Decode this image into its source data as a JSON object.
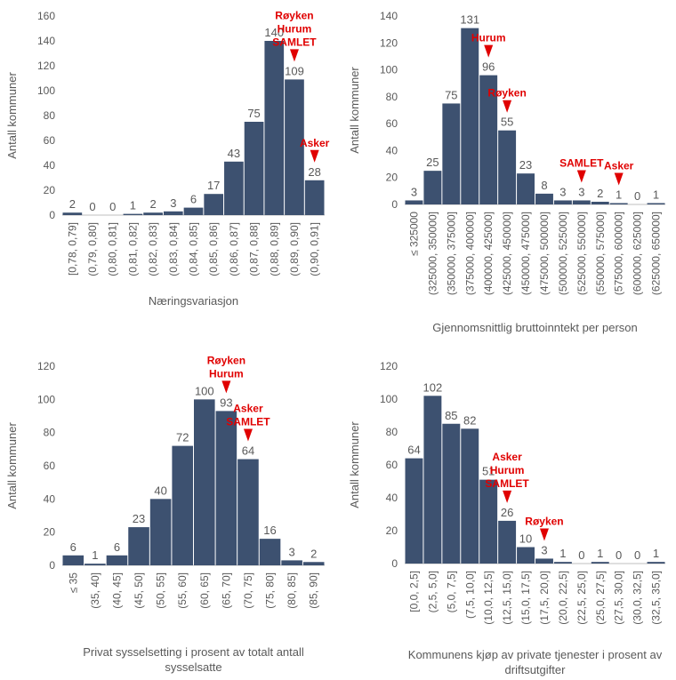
{
  "chart_data": [
    {
      "type": "bar",
      "y_label": "Antall kommuner",
      "x_label": "Næringsvariasjon",
      "color": "#3d5170",
      "categories": [
        "[0,78, 0,79]",
        "(0,79, 0,80]",
        "(0,80, 0,81]",
        "(0,81, 0,82]",
        "(0,82, 0,83]",
        "(0,83, 0,84]",
        "(0,84, 0,85]",
        "(0,85, 0,86]",
        "(0,86, 0,87]",
        "(0,87, 0,88]",
        "(0,88, 0,89]",
        "(0,89, 0,90]",
        "(0,90, 0,91]"
      ],
      "values": [
        2,
        0,
        0,
        1,
        2,
        3,
        6,
        17,
        43,
        75,
        140,
        109,
        28
      ],
      "ylim": [
        0,
        160
      ],
      "yticks": [
        0,
        20,
        40,
        60,
        80,
        100,
        120,
        140,
        160
      ],
      "annotations": [
        {
          "x": "(0,89, 0,90]",
          "text": [
            "Røyken",
            "Hurum",
            "SAMLET"
          ]
        },
        {
          "x": "(0,90, 0,91]",
          "text": [
            "Asker"
          ]
        }
      ]
    },
    {
      "type": "bar",
      "y_label": "Antall kommuner",
      "x_label": "Gjennomsnittlig bruttoinntekt per person",
      "color": "#3d5170",
      "categories": [
        "≤ 325000",
        "(325000, 350000]",
        "(350000, 375000]",
        "(375000, 400000]",
        "(400000, 425000]",
        "(425000, 450000]",
        "(450000, 475000]",
        "(475000, 500000]",
        "(500000, 525000]",
        "(525000, 550000]",
        "(550000, 575000]",
        "(575000, 600000]",
        "(600000, 625000]",
        "(625000, 650000]"
      ],
      "values": [
        3,
        25,
        75,
        131,
        96,
        55,
        23,
        8,
        3,
        3,
        2,
        1,
        0,
        1
      ],
      "ylim": [
        0,
        140
      ],
      "yticks": [
        0,
        20,
        40,
        60,
        80,
        100,
        120,
        140
      ],
      "annotations": [
        {
          "x": "(400000, 425000]",
          "text": [
            "Hurum"
          ]
        },
        {
          "x": "(425000, 450000]",
          "text": [
            "Røyken"
          ]
        },
        {
          "x": "(525000, 550000]",
          "text": [
            "SAMLET"
          ]
        },
        {
          "x": "(575000, 600000]",
          "text": [
            "Asker"
          ]
        }
      ]
    },
    {
      "type": "bar",
      "y_label": "Antall kommuner",
      "x_label": "Privat sysselsetting i prosent av totalt antall sysselsatte",
      "color": "#3d5170",
      "categories": [
        "≤ 35",
        "(35, 40]",
        "(40, 45]",
        "(45, 50]",
        "(50, 55]",
        "(55, 60]",
        "(60, 65]",
        "(65, 70]",
        "(70, 75]",
        "(75, 80]",
        "(80, 85]",
        "(85, 90]"
      ],
      "values": [
        6,
        1,
        6,
        23,
        40,
        72,
        100,
        93,
        64,
        16,
        3,
        2
      ],
      "ylim": [
        0,
        120
      ],
      "yticks": [
        0,
        20,
        40,
        60,
        80,
        100,
        120
      ],
      "annotations": [
        {
          "x": "(65, 70]",
          "text": [
            "Røyken",
            "Hurum"
          ]
        },
        {
          "x": "(70, 75]",
          "text": [
            "Asker",
            "SAMLET"
          ]
        }
      ]
    },
    {
      "type": "bar",
      "y_label": "Antall kommuner",
      "x_label": "Kommunens kjøp av private tjenester i prosent av driftsutgifter",
      "color": "#3d5170",
      "categories": [
        "[0,0, 2,5]",
        "(2,5, 5,0]",
        "(5,0, 7,5]",
        "(7,5, 10,0]",
        "(10,0, 12,5]",
        "(12,5, 15,0]",
        "(15,0, 17,5]",
        "(17,5, 20,0]",
        "(20,0, 22,5]",
        "(22,5, 25,0]",
        "(25,0, 27,5]",
        "(27,5, 30,0]",
        "(30,0, 32,5]",
        "(32,5, 35,0]"
      ],
      "values": [
        64,
        102,
        85,
        82,
        51,
        26,
        10,
        3,
        1,
        0,
        1,
        0,
        0,
        1
      ],
      "ylim": [
        0,
        120
      ],
      "yticks": [
        0,
        20,
        40,
        60,
        80,
        100,
        120
      ],
      "annotations": [
        {
          "x": "(12,5, 15,0]",
          "text": [
            "Asker",
            "Hurum",
            "SAMLET"
          ]
        },
        {
          "x": "(17,5, 20,0]",
          "text": [
            "Røyken"
          ]
        }
      ]
    }
  ]
}
